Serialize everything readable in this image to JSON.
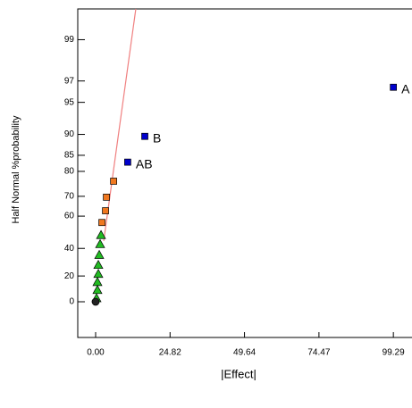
{
  "chart_data": {
    "type": "scatter",
    "xlabel": "|Effect|",
    "ylabel": "Half Normal %probability",
    "yscale": "half-normal-probability",
    "xlim": [
      -5.96,
      105.5
    ],
    "ylim": [
      0,
      99.6
    ],
    "xticks": [
      {
        "value": 0,
        "label": "0.00"
      },
      24.82,
      49.64,
      74.47,
      99.29
    ],
    "yticks": [
      0,
      20,
      40,
      60,
      70,
      80,
      85,
      90,
      95,
      97,
      99
    ],
    "series": [
      {
        "color": "#0000cc",
        "marker": "square",
        "x": [
          99.29,
          16.4,
          10.7
        ],
        "values": [
          96.5,
          89.6,
          83.0
        ],
        "point_labels": [
          "A",
          "B",
          "AB"
        ]
      },
      {
        "color": "#f07820",
        "marker": "square",
        "x": [
          6.0,
          3.6,
          3.3,
          2.1
        ],
        "values": [
          76.4,
          69.6,
          62.9,
          56.4
        ]
      },
      {
        "color": "#22bb22",
        "marker": "triangle",
        "x": [
          1.8,
          1.5,
          1.2,
          0.9,
          0.9,
          0.6,
          0.6,
          0.3
        ],
        "values": [
          48.8,
          42.9,
          35.5,
          28.3,
          21.6,
          15.4,
          9.2,
          2.8
        ]
      },
      {
        "color": "#222222",
        "marker": "circle",
        "x": [
          0
        ],
        "values": [
          0
        ]
      }
    ],
    "fit_line": {
      "color": "#f08080",
      "x": [
        2.7,
        13.4
      ],
      "values": [
        45,
        99.6
      ]
    }
  }
}
